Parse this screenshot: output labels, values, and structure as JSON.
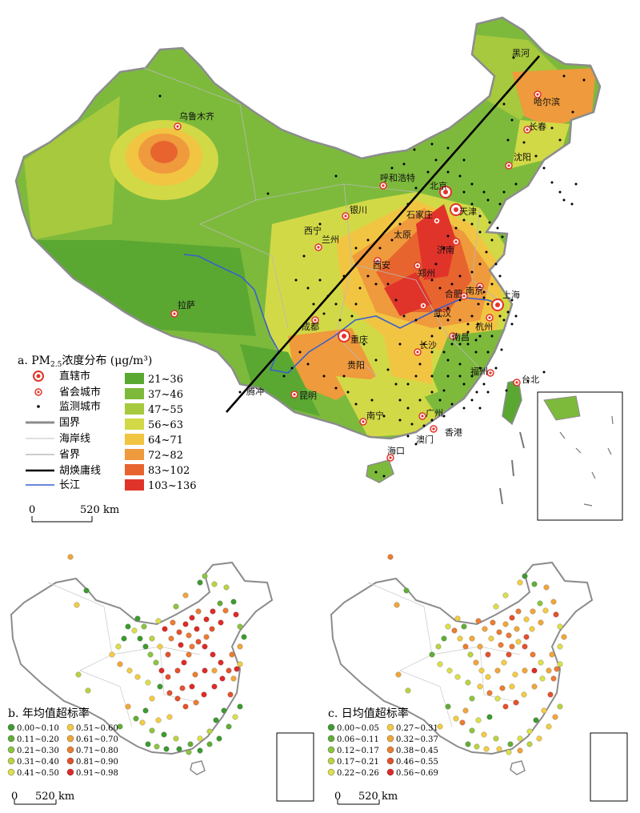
{
  "colors": {
    "pm": [
      "#5aa832",
      "#7dba3c",
      "#a6c93e",
      "#d2d946",
      "#f1c542",
      "#ef9a3c",
      "#e8642f",
      "#e0342a"
    ],
    "rate_b": [
      "#3e9a30",
      "#62ad36",
      "#8cc33f",
      "#b8d443",
      "#dbe04a",
      "#f2cc44",
      "#f0a63a",
      "#ec7c33",
      "#e5512d",
      "#df2a26"
    ],
    "rate_c": [
      "#3e9a30",
      "#62ad36",
      "#8cc33f",
      "#b8d443",
      "#dbe04a",
      "#f2cc44",
      "#f0a63a",
      "#ec7c33",
      "#e5512d",
      "#df2a26"
    ],
    "border": "#8c8c8c",
    "yangtze": "#3a5fcd",
    "hu_line": "#000000"
  },
  "panel_a": {
    "title_prefix": "a. PM",
    "title_sub": "2.5",
    "title_suffix": "浓度分布 (μg/m³)",
    "symbol_legend": [
      "直辖市",
      "省会城市",
      "监测城市",
      "国界",
      "海岸线",
      "省界",
      "胡焕庸线",
      "长江"
    ],
    "ranges": [
      "21~36",
      "37~46",
      "47~55",
      "56~63",
      "64~71",
      "72~82",
      "83~102",
      "103~136"
    ],
    "scale_zero": "0",
    "scale_label": "520 km",
    "cities": {
      "beijing": "北京",
      "tianjin": "天津",
      "shanghai": "上海",
      "chongqing": "重庆",
      "harbin": "哈尔滨",
      "changchun": "长春",
      "shenyang": "沈阳",
      "heihe": "黑河",
      "urumqi": "乌鲁木齐",
      "hohhot": "呼和浩特",
      "yinchuan": "银川",
      "xining": "西宁",
      "lanzhou": "兰州",
      "shijiazhuang": "石家庄",
      "taiyuan": "太原",
      "jinan": "济南",
      "xian": "西安",
      "zhengzhou": "郑州",
      "hefei": "合肥",
      "nanjing": "南京",
      "wuhan": "武汉",
      "hangzhou": "杭州",
      "lhasa": "拉萨",
      "chengdu": "成都",
      "changsha": "长沙",
      "nanchang": "南昌",
      "guiyang": "贵阳",
      "kunming": "昆明",
      "fuzhou": "福州",
      "taipei": "台北",
      "nanning": "南宁",
      "guangzhou": "广州",
      "macao": "澳门",
      "hongkong": "香港",
      "haikou": "海口",
      "tengchong": "腾冲"
    }
  },
  "panel_b": {
    "title": "b. 年均值超标率",
    "ranges": [
      "0.00~0.10",
      "0.11~0.20",
      "0.21~0.30",
      "0.31~0.40",
      "0.41~0.50",
      "0.51~0.60",
      "0.61~0.70",
      "0.71~0.80",
      "0.81~0.90",
      "0.91~0.98"
    ],
    "scale_zero": "0",
    "scale_label": "520 km"
  },
  "panel_c": {
    "title": "c. 日均值超标率",
    "ranges": [
      "0.00~0.05",
      "0.06~0.11",
      "0.12~0.17",
      "0.17~0.21",
      "0.22~0.26",
      "0.27~0.31",
      "0.32~0.37",
      "0.38~0.45",
      "0.46~0.55",
      "0.56~0.69"
    ],
    "scale_zero": "0",
    "scale_label": "520 km"
  }
}
